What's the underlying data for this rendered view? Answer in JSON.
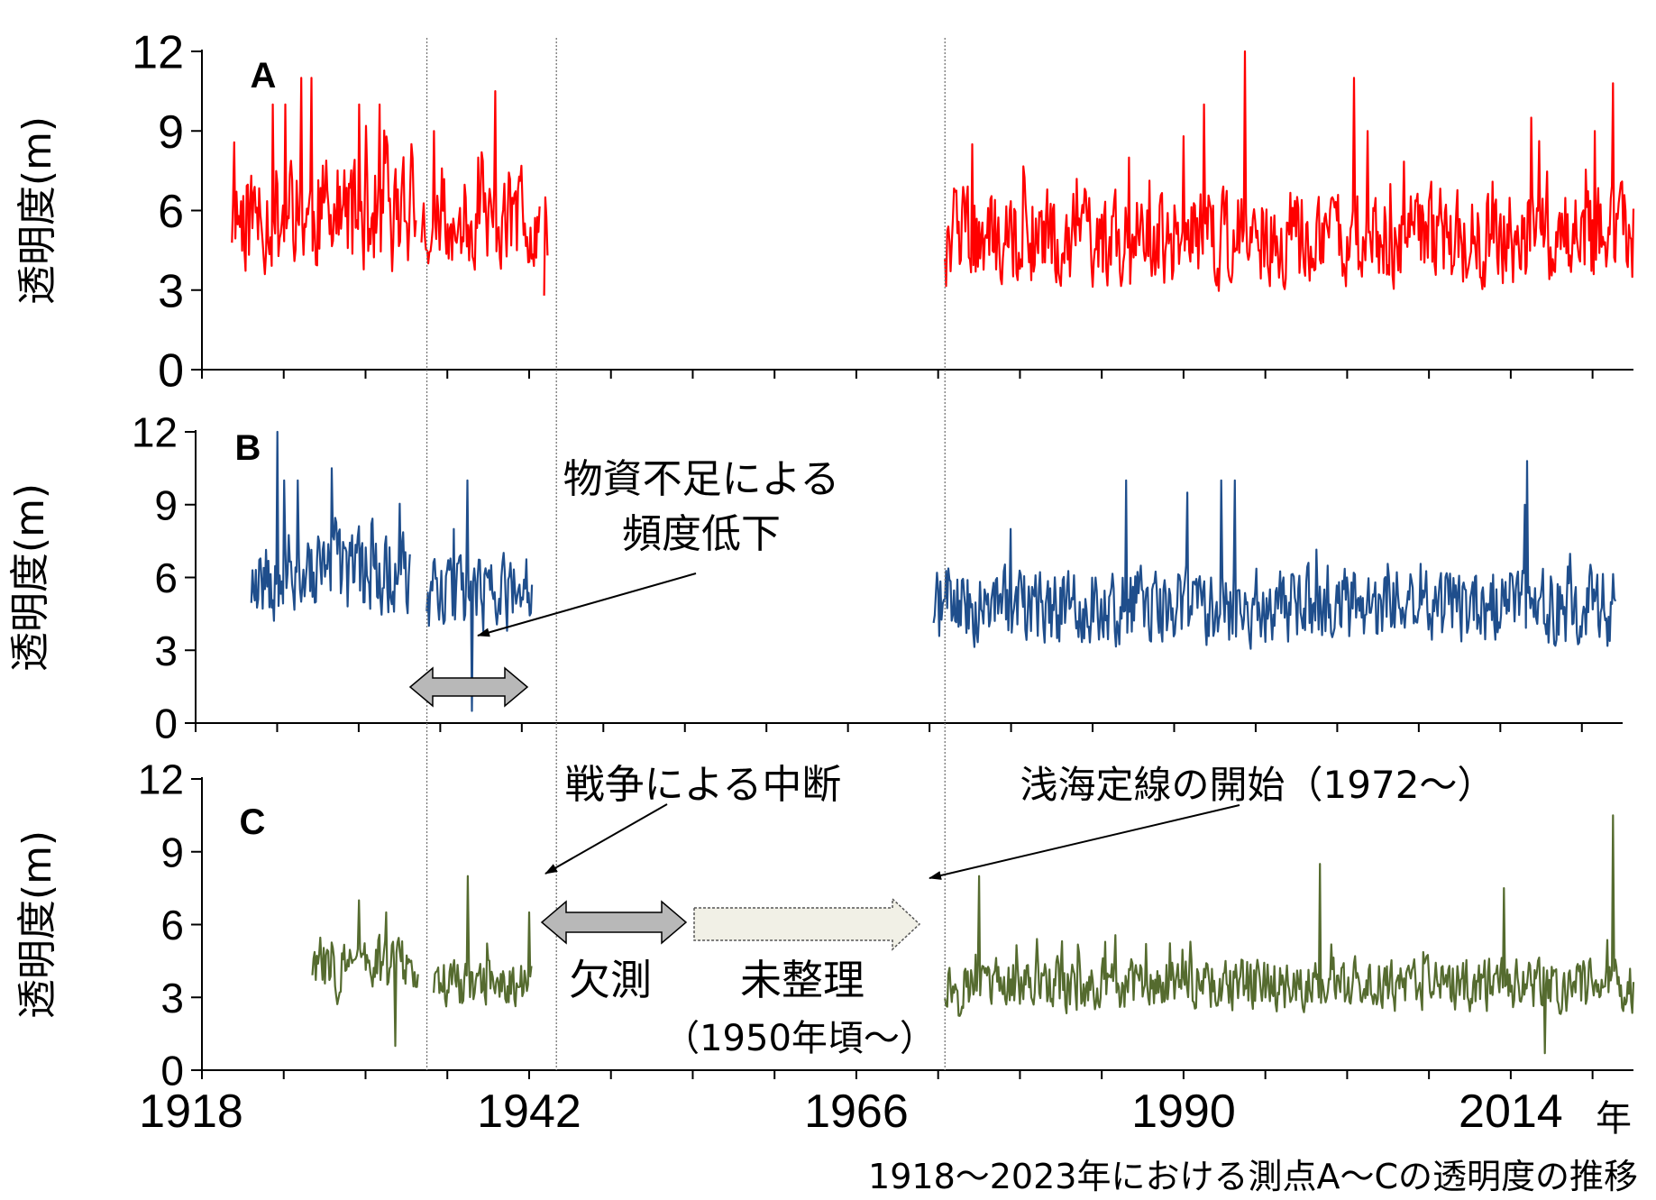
{
  "chart_data": {
    "type": "line",
    "caption": "1918〜2023年における測点A〜Cの透明度の推移",
    "x_unit_label": "年",
    "xlim": [
      1918,
      2023
    ],
    "x_ticks": [
      1918,
      1942,
      1966,
      1990,
      2014
    ],
    "y_ticks": [
      0,
      3,
      6,
      9,
      12
    ],
    "ylim": [
      0,
      12
    ],
    "vlines": [
      1934.5,
      1944,
      1972.5
    ],
    "panels": [
      {
        "label": "A",
        "ylabel": "透明度(m)",
        "color": "#ff0000",
        "segments": [
          {
            "x0": 1920.2,
            "x1": 1933.7,
            "seed": 11,
            "mean": 5.8,
            "amp": 2.6,
            "min": 1.5,
            "max": 11,
            "peaks": [
              [
                1923.2,
                10
              ],
              [
                1924.1,
                10
              ],
              [
                1925.3,
                11
              ],
              [
                1926.0,
                11
              ],
              [
                1929.5,
                10
              ],
              [
                1931.0,
                10
              ]
            ]
          },
          {
            "x0": 1934.1,
            "x1": 1942.8,
            "seed": 23,
            "mean": 5.6,
            "amp": 2.1,
            "min": 3,
            "max": 10.5,
            "peaks": [
              [
                1935.0,
                9
              ],
              [
                1938.5,
                8.2
              ],
              [
                1938.3,
                8.0
              ],
              [
                1939.5,
                10.5
              ]
            ]
          },
          {
            "x0": 1943.1,
            "x1": 1943.4,
            "seed": 31,
            "mean": 4.5,
            "amp": 2.5,
            "min": 2,
            "max": 6.5,
            "peaks": []
          },
          {
            "x0": 1972.5,
            "x1": 2023,
            "seed": 47,
            "mean": 5.0,
            "amp": 2.2,
            "min": 1.5,
            "max": 12,
            "peaks": [
              [
                1974.5,
                8.5
              ],
              [
                1986.0,
                8.0
              ],
              [
                1990.0,
                8.8
              ],
              [
                1991.5,
                10.0
              ],
              [
                1994.5,
                12.0
              ],
              [
                2002.5,
                11.0
              ],
              [
                2003.5,
                9.0
              ],
              [
                2015.5,
                9.5
              ],
              [
                2021.5,
                10.8
              ],
              [
                2020.2,
                9.0
              ]
            ]
          }
        ]
      },
      {
        "label": "B",
        "ylabel": "透明度(m)",
        "color": "#1f4e8c",
        "segments": [
          {
            "x0": 1922.1,
            "x1": 1933.8,
            "seed": 53,
            "mean": 6.2,
            "amp": 2.1,
            "min": 2,
            "max": 12,
            "peaks": [
              [
                1924.0,
                12
              ],
              [
                1924.5,
                10
              ],
              [
                1925.5,
                10
              ],
              [
                1928.0,
                10.5
              ]
            ]
          },
          {
            "x0": 1935.0,
            "x1": 1942.8,
            "seed": 61,
            "mean": 5.3,
            "amp": 1.9,
            "min": 0.5,
            "max": 10,
            "peaks": [
              [
                1938.0,
                10
              ],
              [
                1938.3,
                0.5
              ],
              [
                1937.0,
                8
              ]
            ]
          },
          {
            "x0": 1972.3,
            "x1": 2022.5,
            "seed": 71,
            "mean": 4.8,
            "amp": 1.9,
            "min": 1,
            "max": 10.8,
            "peaks": [
              [
                1978.0,
                8.0
              ],
              [
                1986.5,
                10.0
              ],
              [
                1991.0,
                9.5
              ],
              [
                1993.5,
                10.0
              ],
              [
                1994.5,
                10.0
              ],
              [
                2016.0,
                10.8
              ],
              [
                2015.8,
                9.0
              ]
            ]
          }
        ]
      },
      {
        "label": "C",
        "ylabel": "透明度(m)",
        "color": "#556b2f",
        "segments": [
          {
            "x0": 1926.1,
            "x1": 1933.9,
            "seed": 83,
            "mean": 4.4,
            "amp": 1.4,
            "min": 1,
            "max": 7,
            "peaks": [
              [
                1929.5,
                7
              ],
              [
                1931.5,
                6.5
              ],
              [
                1932.2,
                1
              ]
            ]
          },
          {
            "x0": 1935.0,
            "x1": 1942.2,
            "seed": 89,
            "mean": 3.6,
            "amp": 1.2,
            "min": 2,
            "max": 8,
            "peaks": [
              [
                1937.5,
                8
              ],
              [
                1942.0,
                6.5
              ]
            ]
          },
          {
            "x0": 1972.5,
            "x1": 2023,
            "seed": 97,
            "mean": 3.5,
            "amp": 1.3,
            "min": 0.7,
            "max": 10.5,
            "peaks": [
              [
                1975.0,
                8.0
              ],
              [
                2000.0,
                8.5
              ],
              [
                2013.5,
                7.5
              ],
              [
                2021.5,
                10.5
              ],
              [
                2016.5,
                0.7
              ]
            ]
          }
        ]
      }
    ]
  },
  "annotations": {
    "shortage_line1": "物資不足による",
    "shortage_line2": "頻度低下",
    "war": "戦争による中断",
    "start": "浅海定線の開始（1972〜）",
    "missing": "欠測",
    "unorganized": "未整理",
    "unorganized_sub": "（1950年頃〜）"
  }
}
